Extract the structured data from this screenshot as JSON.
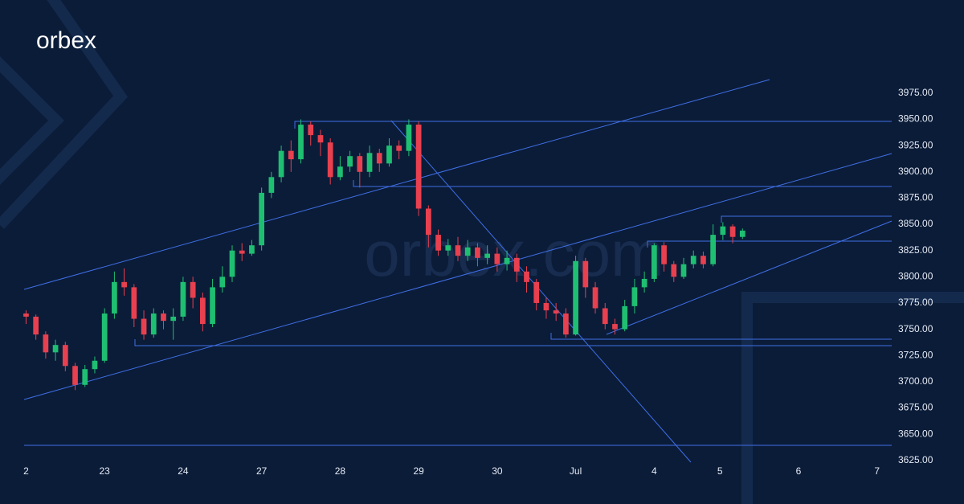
{
  "logo": "orbex",
  "watermark": "orbex.com",
  "chart_data": {
    "type": "candlestick",
    "x": [
      0,
      1,
      2,
      3,
      4,
      5,
      6,
      7,
      8,
      9,
      10,
      11,
      12,
      13,
      14,
      15,
      16,
      17,
      18,
      19,
      20,
      21,
      22,
      23,
      24,
      25,
      26,
      27,
      28,
      29,
      30,
      31,
      32,
      33,
      34,
      35,
      36,
      37,
      38,
      39,
      40,
      41,
      42,
      43,
      44,
      45,
      46,
      47,
      48,
      49,
      50,
      51,
      52,
      53,
      54,
      55,
      56,
      57,
      58,
      59,
      60,
      61,
      62,
      63,
      64,
      65,
      66,
      67,
      68,
      69,
      70,
      71,
      72,
      73
    ],
    "open": [
      3765,
      3762,
      3745,
      3728,
      3735,
      3715,
      3697,
      3712,
      3720,
      3765,
      3795,
      3790,
      3760,
      3745,
      3765,
      3758,
      3762,
      3795,
      3780,
      3755,
      3790,
      3800,
      3825,
      3822,
      3830,
      3880,
      3895,
      3920,
      3912,
      3945,
      3935,
      3928,
      3895,
      3905,
      3915,
      3900,
      3918,
      3908,
      3925,
      3920,
      3945,
      3865,
      3840,
      3825,
      3830,
      3820,
      3828,
      3818,
      3822,
      3812,
      3818,
      3805,
      3795,
      3775,
      3768,
      3765,
      3745,
      3815,
      3790,
      3770,
      3755,
      3750,
      3772,
      3790,
      3798,
      3830,
      3812,
      3800,
      3812,
      3820,
      3812,
      3840,
      3848,
      3838
    ],
    "high": [
      3768,
      3764,
      3748,
      3740,
      3738,
      3718,
      3716,
      3724,
      3770,
      3805,
      3808,
      3793,
      3768,
      3770,
      3768,
      3770,
      3800,
      3800,
      3785,
      3798,
      3810,
      3830,
      3832,
      3835,
      3885,
      3900,
      3925,
      3930,
      3950,
      3948,
      3940,
      3932,
      3915,
      3920,
      3918,
      3925,
      3922,
      3932,
      3930,
      3950,
      3948,
      3868,
      3845,
      3836,
      3838,
      3835,
      3832,
      3830,
      3828,
      3825,
      3822,
      3810,
      3798,
      3780,
      3775,
      3770,
      3820,
      3818,
      3795,
      3775,
      3760,
      3778,
      3798,
      3805,
      3832,
      3833,
      3815,
      3818,
      3825,
      3824,
      3850,
      3852,
      3850,
      3846
    ],
    "low": [
      3755,
      3740,
      3722,
      3720,
      3710,
      3692,
      3695,
      3708,
      3718,
      3760,
      3782,
      3752,
      3740,
      3742,
      3750,
      3740,
      3758,
      3770,
      3748,
      3752,
      3785,
      3795,
      3815,
      3820,
      3825,
      3875,
      3890,
      3900,
      3908,
      3925,
      3915,
      3888,
      3892,
      3900,
      3885,
      3895,
      3900,
      3905,
      3912,
      3915,
      3858,
      3828,
      3820,
      3820,
      3815,
      3815,
      3810,
      3812,
      3805,
      3806,
      3795,
      3785,
      3768,
      3760,
      3758,
      3742,
      3744,
      3780,
      3765,
      3750,
      3745,
      3748,
      3765,
      3785,
      3795,
      3805,
      3795,
      3798,
      3808,
      3808,
      3810,
      3835,
      3832,
      3836
    ],
    "close": [
      3762,
      3745,
      3728,
      3735,
      3715,
      3697,
      3712,
      3720,
      3765,
      3795,
      3790,
      3760,
      3745,
      3765,
      3758,
      3762,
      3795,
      3780,
      3755,
      3790,
      3800,
      3825,
      3822,
      3830,
      3880,
      3895,
      3920,
      3912,
      3945,
      3935,
      3928,
      3895,
      3905,
      3915,
      3900,
      3918,
      3908,
      3925,
      3920,
      3945,
      3865,
      3840,
      3825,
      3830,
      3820,
      3828,
      3818,
      3822,
      3812,
      3818,
      3805,
      3795,
      3775,
      3768,
      3765,
      3745,
      3815,
      3790,
      3770,
      3755,
      3750,
      3772,
      3790,
      3798,
      3830,
      3812,
      3800,
      3812,
      3820,
      3812,
      3840,
      3848,
      3838,
      3844
    ],
    "up_color": "#1fbf72",
    "down_color": "#e8404f",
    "xlim": [
      -0.2,
      88.2
    ],
    "xticks": [
      {
        "value": 0,
        "label": "2"
      },
      {
        "value": 8,
        "label": "23"
      },
      {
        "value": 16,
        "label": "24"
      },
      {
        "value": 24,
        "label": "27"
      },
      {
        "value": 32,
        "label": "28"
      },
      {
        "value": 40,
        "label": "29"
      },
      {
        "value": 48,
        "label": "30"
      },
      {
        "value": 56,
        "label": "Jul"
      },
      {
        "value": 64,
        "label": "4"
      },
      {
        "value": 70.7,
        "label": "5"
      },
      {
        "value": 78.7,
        "label": "6"
      },
      {
        "value": 86.7,
        "label": "7"
      }
    ],
    "ylim": [
      3621,
      3991
    ],
    "yticks": [
      {
        "value": 3625,
        "label": "3625.00"
      },
      {
        "value": 3650,
        "label": "3650.00"
      },
      {
        "value": 3675,
        "label": "3675.00"
      },
      {
        "value": 3700,
        "label": "3700.00"
      },
      {
        "value": 3725,
        "label": "3725.00"
      },
      {
        "value": 3750,
        "label": "3750.00"
      },
      {
        "value": 3775,
        "label": "3775.00"
      },
      {
        "value": 3800,
        "label": "3800.00"
      },
      {
        "value": 3825,
        "label": "3825.00"
      },
      {
        "value": 3850,
        "label": "3850.00"
      },
      {
        "value": 3875,
        "label": "3875.00"
      },
      {
        "value": 3900,
        "label": "3900.00"
      },
      {
        "value": 3925,
        "label": "3925.00"
      },
      {
        "value": 3950,
        "label": "3950.00"
      },
      {
        "value": 3975,
        "label": "3975.00"
      }
    ]
  }
}
